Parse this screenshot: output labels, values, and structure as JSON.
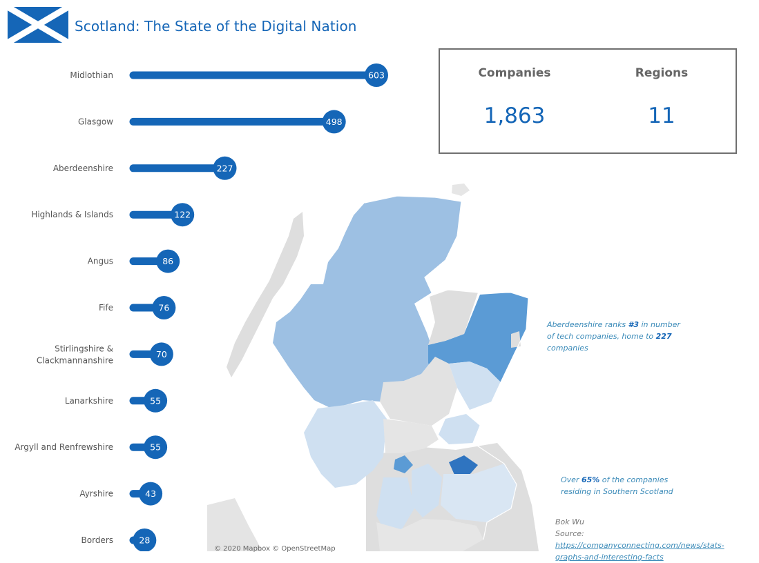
{
  "header": {
    "title": "Scotland: The State of the Digital Nation"
  },
  "kpis": [
    {
      "label": "Companies",
      "value": "1,863"
    },
    {
      "label": "Regions",
      "value": "11"
    }
  ],
  "notes": {
    "aberdeen_pre": "Aberdeenshire ranks ",
    "aberdeen_rank": "#3",
    "aberdeen_mid": "  in number of tech companies, home to ",
    "aberdeen_count": "227",
    "aberdeen_post": " companies",
    "southern_pre": "Over ",
    "southern_pct": "65%",
    "southern_post": "  of the companies residing in Southern Scotland"
  },
  "source": {
    "author": "Bok Wu",
    "label": "Source: ",
    "url": "https://companyconnecting.com/news/stats-graphs-and-interesting-facts"
  },
  "map": {
    "credit": "© 2020 Mapbox © OpenStreetMap"
  },
  "colors": {
    "accent": "#1566b7",
    "bar": "#1566b7",
    "map_dark": "#5b9bd5",
    "map_medium": "#9dc0e3",
    "map_light": "#cfe0f1",
    "map_gray": "#dedede"
  },
  "chart_data": {
    "type": "bar",
    "orientation": "horizontal",
    "categories": [
      "Midlothian",
      "Glasgow",
      "Aberdeenshire",
      "Highlands & Islands",
      "Angus",
      "Fife",
      "Stirlingshire & Clackmannanshire",
      "Lanarkshire",
      "Argyll and Renfrewshire",
      "Ayrshire",
      "Borders"
    ],
    "values": [
      603,
      498,
      227,
      122,
      86,
      76,
      70,
      55,
      55,
      43,
      28
    ],
    "data_labels": [
      "603",
      "498",
      "227",
      "122",
      "86",
      "76",
      "70",
      "55",
      "55",
      "43",
      "28"
    ],
    "xlim": [
      0,
      603
    ],
    "grid": false,
    "legend": "none"
  }
}
